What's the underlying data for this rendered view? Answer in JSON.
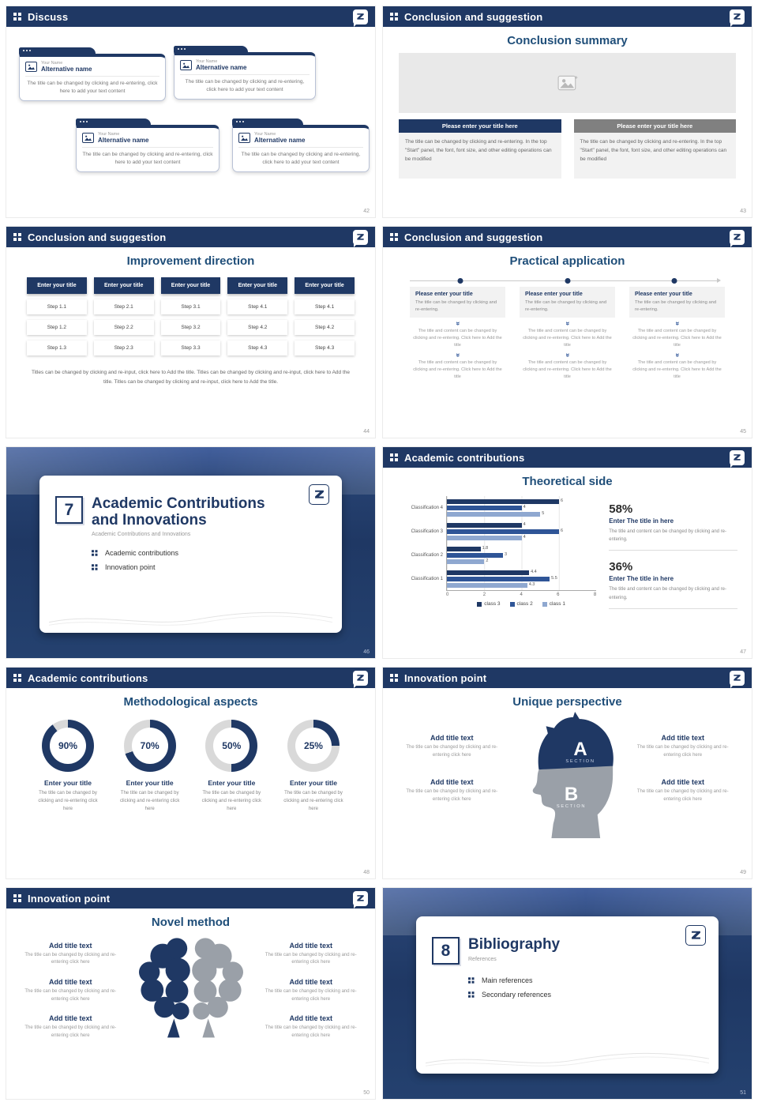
{
  "colors": {
    "navy": "#1f3864",
    "accent": "#2f5597",
    "light_blue": "#8fa8d0",
    "gray_button": "#808080",
    "panel": "#f2f2f2",
    "track": "#d9d9d9",
    "silhouette_gray": "#9aa0a8"
  },
  "chart_data": [
    {
      "type": "bar",
      "orientation": "horizontal",
      "title": "Theoretical side",
      "categories": [
        "Classification 4",
        "Classification 3",
        "Classification 2",
        "Classification 1"
      ],
      "series": [
        {
          "name": "class 3",
          "color": "#1f3864",
          "values": [
            6,
            4,
            1.8,
            4.4
          ]
        },
        {
          "name": "class 2",
          "color": "#2f5597",
          "values": [
            4,
            6,
            3,
            5.5
          ]
        },
        {
          "name": "class 1",
          "color": "#8fa8d0",
          "values": [
            5,
            4,
            2,
            4.3
          ]
        }
      ],
      "xlim": [
        0,
        8
      ],
      "xticks": [
        0,
        2,
        4,
        6,
        8
      ],
      "legend": [
        "class 3",
        "class 2",
        "class 1"
      ],
      "legend_position": "bottom",
      "grid": true
    },
    {
      "type": "pie",
      "variant": "donut",
      "title": "Methodological aspects",
      "values": [
        90,
        70,
        50,
        25
      ],
      "unit": "%",
      "labels": [
        "Enter your title",
        "Enter your title",
        "Enter your title",
        "Enter your title"
      ]
    }
  ],
  "slides": [
    {
      "num": "42",
      "header": "Discuss",
      "cards": [
        {
          "label": "Your Name",
          "name": "Alternative name",
          "body": "The title can be changed by clicking and re-entering, click here to add your text content"
        },
        {
          "label": "Your Name",
          "name": "Alternative name",
          "body": "The title can be changed by clicking and re-entering, click here to add your text content"
        },
        {
          "label": "Your Name",
          "name": "Alternative name",
          "body": "The title can be changed by clicking and re-entering, click here to add your text content"
        },
        {
          "label": "Your Name",
          "name": "Alternative name",
          "body": "The title can be changed by clicking and re-entering, click here to add your text content"
        }
      ]
    },
    {
      "num": "43",
      "header": "Conclusion and suggestion",
      "title": "Conclusion summary",
      "panels": [
        {
          "button": "Please enter your title here",
          "body": "The title can be changed by clicking and re-entering. In the top \"Start\" panel, the font, font size, and other editing operations can be modified"
        },
        {
          "button": "Please enter your title here",
          "body": "The title can be changed by clicking and re-entering. In the top \"Start\" panel, the font, font size, and other editing operations can be modified"
        }
      ]
    },
    {
      "num": "44",
      "header": "Conclusion and suggestion",
      "title": "Improvement direction",
      "columns": [
        {
          "title": "Enter your title",
          "steps": [
            "Step 1.1",
            "Step 1.2",
            "Step 1.3"
          ]
        },
        {
          "title": "Enter your title",
          "steps": [
            "Step 2.1",
            "Step 2.2",
            "Step 2.3"
          ]
        },
        {
          "title": "Enter your title",
          "steps": [
            "Step 3.1",
            "Step 3.2",
            "Step 3.3"
          ]
        },
        {
          "title": "Enter your title",
          "steps": [
            "Step 4.1",
            "Step 4.2",
            "Step 4.3"
          ]
        },
        {
          "title": "Enter your title",
          "steps": [
            "Step 4.1",
            "Step 4.2",
            "Step 4.3"
          ]
        }
      ],
      "footnote": "Titles can be changed by clicking and re-input, click here to Add the title. Titles can be changed by clicking and re-input, click here to Add the title. Titles can be changed by clicking and re-input, click here to Add the title."
    },
    {
      "num": "45",
      "header": "Conclusion and suggestion",
      "title": "Practical application",
      "columns": [
        {
          "title": "Please enter your title",
          "sub": "The title can be changed by clicking and re-entering.",
          "body1": "The title and content can be changed by clicking and re-entering. Click here to Add the title",
          "body2": "The title and content can be changed by clicking and re-entering. Click here to Add the title"
        },
        {
          "title": "Please enter your title",
          "sub": "The title can be changed by clicking and re-entering.",
          "body1": "The title and content can be changed by clicking and re-entering. Click here to Add the title",
          "body2": "The title and content can be changed by clicking and re-entering. Click here to Add the title"
        },
        {
          "title": "Please enter your title",
          "sub": "The title can be changed by clicking and re-entering.",
          "body1": "The title and content can be changed by clicking and re-entering. Click here to Add the title",
          "body2": "The title and content can be changed by clicking and re-entering. Click here to Add the title"
        }
      ]
    },
    {
      "num": "46",
      "cover": {
        "index": "7",
        "title": "Academic Contributions and Innovations",
        "subtitle": "Academic Contributions and Innovations",
        "items": [
          "Academic contributions",
          "Innovation point"
        ]
      }
    },
    {
      "num": "47",
      "header": "Academic contributions",
      "title": "Theoretical side",
      "stats": [
        {
          "value": "58%",
          "label": "Enter The title in here",
          "body": "The title and content can be changed by clicking and re-entering."
        },
        {
          "value": "36%",
          "label": "Enter The title in here",
          "body": "The title and content can be changed by clicking and re-entering."
        }
      ]
    },
    {
      "num": "48",
      "header": "Academic contributions",
      "title": "Methodological aspects",
      "donuts": [
        {
          "percent_label": "90%",
          "title": "Enter your title",
          "body": "The title can be changed by clicking and re-entering click here"
        },
        {
          "percent_label": "70%",
          "title": "Enter your title",
          "body": "The title can be changed by clicking and re-entering click here"
        },
        {
          "percent_label": "50%",
          "title": "Enter your title",
          "body": "The title can be changed by clicking and re-entering click here"
        },
        {
          "percent_label": "25%",
          "title": "Enter your title",
          "body": "The title can be changed by clicking and re-entering click here"
        }
      ]
    },
    {
      "num": "49",
      "header": "Innovation point",
      "title": "Unique perspective",
      "left": [
        {
          "title": "Add title text",
          "body": "The title can be changed by clicking and re-entering click here"
        },
        {
          "title": "Add title text",
          "body": "The title can be changed by clicking and re-entering click here"
        }
      ],
      "right": [
        {
          "title": "Add title text",
          "body": "The title can be changed by clicking and re-entering click here"
        },
        {
          "title": "Add title text",
          "body": "The title can be changed by clicking and re-entering click here"
        }
      ],
      "sections": [
        {
          "letter": "A",
          "caption": "SECTION"
        },
        {
          "letter": "B",
          "caption": "SECTION"
        }
      ]
    },
    {
      "num": "50",
      "header": "Innovation point",
      "title": "Novel method",
      "left": [
        {
          "title": "Add title text",
          "body": "The title can be changed by clicking and re-entering click here"
        },
        {
          "title": "Add title text",
          "body": "The title can be changed by clicking and re-entering click here"
        },
        {
          "title": "Add title text",
          "body": "The title can be changed by clicking and re-entering click here"
        }
      ],
      "right": [
        {
          "title": "Add title text",
          "body": "The title can be changed by clicking and re-entering click here"
        },
        {
          "title": "Add title text",
          "body": "The title can be changed by clicking and re-entering click here"
        },
        {
          "title": "Add title text",
          "body": "The title can be changed by clicking and re-entering click here"
        }
      ]
    },
    {
      "num": "51",
      "cover": {
        "index": "8",
        "title": "Bibliography",
        "subtitle": "References",
        "items": [
          "Main references",
          "Secondary references"
        ]
      }
    }
  ]
}
